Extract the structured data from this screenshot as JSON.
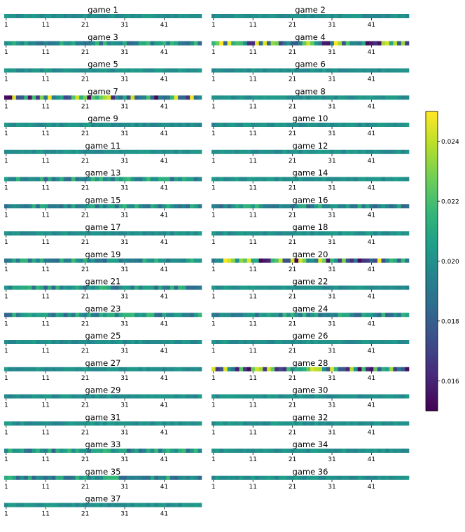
{
  "chart_data": {
    "type": "heatmap",
    "colormap": "viridis",
    "columns": 50,
    "x_tick_labels": [
      "1",
      "11",
      "21",
      "31",
      "41"
    ],
    "games": [
      {
        "title": "game 1",
        "style": "calm"
      },
      {
        "title": "game 2",
        "style": "calm"
      },
      {
        "title": "game 3",
        "style": "mild"
      },
      {
        "title": "game 4",
        "style": "strong"
      },
      {
        "title": "game 5",
        "style": "calm"
      },
      {
        "title": "game 6",
        "style": "calm"
      },
      {
        "title": "game 7",
        "style": "strong"
      },
      {
        "title": "game 8",
        "style": "calm"
      },
      {
        "title": "game 9",
        "style": "calm"
      },
      {
        "title": "game 10",
        "style": "calm"
      },
      {
        "title": "game 11",
        "style": "calm"
      },
      {
        "title": "game 12",
        "style": "calm"
      },
      {
        "title": "game 13",
        "style": "mild"
      },
      {
        "title": "game 14",
        "style": "calm"
      },
      {
        "title": "game 15",
        "style": "mild"
      },
      {
        "title": "game 16",
        "style": "mild"
      },
      {
        "title": "game 17",
        "style": "calm"
      },
      {
        "title": "game 18",
        "style": "calm"
      },
      {
        "title": "game 19",
        "style": "mild"
      },
      {
        "title": "game 20",
        "style": "strong"
      },
      {
        "title": "game 21",
        "style": "mild"
      },
      {
        "title": "game 22",
        "style": "calm"
      },
      {
        "title": "game 23",
        "style": "mild"
      },
      {
        "title": "game 24",
        "style": "mild"
      },
      {
        "title": "game 25",
        "style": "calm"
      },
      {
        "title": "game 26",
        "style": "calm"
      },
      {
        "title": "game 27",
        "style": "calm"
      },
      {
        "title": "game 28",
        "style": "strong"
      },
      {
        "title": "game 29",
        "style": "calm"
      },
      {
        "title": "game 30",
        "style": "calm"
      },
      {
        "title": "game 31",
        "style": "calm"
      },
      {
        "title": "game 32",
        "style": "calm"
      },
      {
        "title": "game 33",
        "style": "mild"
      },
      {
        "title": "game 34",
        "style": "calm"
      },
      {
        "title": "game 35",
        "style": "mild"
      },
      {
        "title": "game 36",
        "style": "calm"
      },
      {
        "title": "game 37",
        "style": "calm"
      }
    ],
    "colorbar": {
      "range": [
        0.015,
        0.025
      ],
      "ticks": [
        0.016,
        0.018,
        0.02,
        0.022,
        0.024
      ],
      "tick_labels": [
        "0.016",
        "0.018",
        "0.020",
        "0.022",
        "0.024"
      ]
    }
  }
}
